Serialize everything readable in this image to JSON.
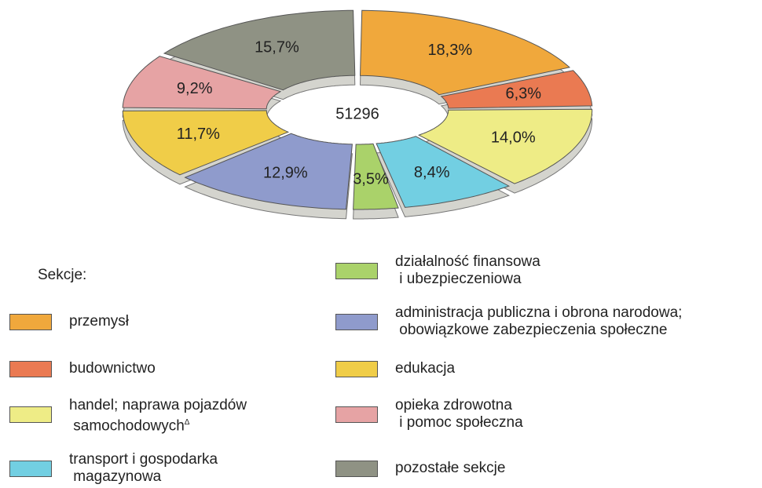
{
  "chart_data": {
    "type": "donut",
    "categories": [
      "przemysł",
      "budownictwo",
      "handel; naprawa pojazdów\n samochodowych",
      "transport i gospodarka\n magazynowa",
      "działalność finansowa\n i ubezpieczeniowa",
      "administracja publiczna i obrona narodowa;\n obowiązkowe zabezpieczenia społeczne",
      "edukacja",
      "opieka zdrowotna\n i pomoc społeczna",
      "pozostałe sekcje"
    ],
    "superscripts": [
      null,
      null,
      "Δ",
      null,
      null,
      null,
      null,
      null,
      null
    ],
    "values": [
      18.3,
      6.3,
      14.0,
      8.4,
      3.5,
      12.9,
      11.7,
      9.2,
      15.7
    ],
    "value_labels": [
      "18,3%",
      "6,3%",
      "14,0%",
      "8,4%",
      "3,5%",
      "12,9%",
      "11,7%",
      "9,2%",
      "15,7%"
    ],
    "colors": [
      "#f0a83c",
      "#ea7a52",
      "#eeec86",
      "#72cfe2",
      "#aad26a",
      "#8f9bcc",
      "#f0cd48",
      "#e6a3a4",
      "#8f9284"
    ],
    "center_value": 51296,
    "legend_title": "Sekcje:"
  }
}
